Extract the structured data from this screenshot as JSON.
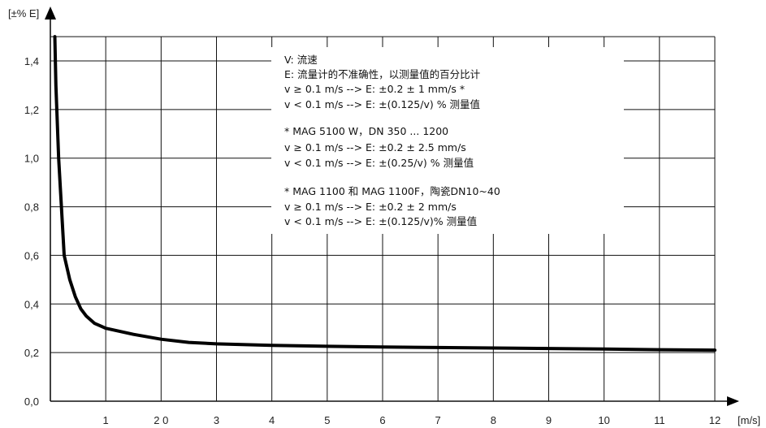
{
  "chart_data": {
    "type": "line",
    "ylabel": "[±% E]",
    "xlabel": "[m/s]",
    "xlim": [
      0,
      12
    ],
    "ylim": [
      0,
      1.5
    ],
    "x_tick_labels": [
      {
        "x": 1,
        "label": "1"
      },
      {
        "x": 2,
        "label": "2 0"
      },
      {
        "x": 3,
        "label": "3"
      },
      {
        "x": 4,
        "label": "4"
      },
      {
        "x": 5,
        "label": "5"
      },
      {
        "x": 6,
        "label": "6"
      },
      {
        "x": 7,
        "label": "7"
      },
      {
        "x": 8,
        "label": "8"
      },
      {
        "x": 9,
        "label": "9"
      },
      {
        "x": 10,
        "label": "10"
      },
      {
        "x": 11,
        "label": "11"
      },
      {
        "x": 12,
        "label": "12"
      }
    ],
    "y_tick_labels": [
      {
        "y": 0.0,
        "label": "0,0"
      },
      {
        "y": 0.2,
        "label": "0,2"
      },
      {
        "y": 0.4,
        "label": "0,4"
      },
      {
        "y": 0.6,
        "label": "0,6"
      },
      {
        "y": 0.8,
        "label": "0,8"
      },
      {
        "y": 1.0,
        "label": "1,0"
      },
      {
        "y": 1.2,
        "label": "1,2"
      },
      {
        "y": 1.4,
        "label": "1,4"
      }
    ],
    "grid": true,
    "series": [
      {
        "x": [
          0.08,
          0.1,
          0.15,
          0.2,
          0.25,
          0.35,
          0.45,
          0.55,
          0.65,
          0.8,
          1.0,
          1.2,
          1.5,
          2.0,
          2.5,
          3.0,
          4.0,
          5.0,
          6.0,
          7.0,
          8.0,
          9.0,
          10.0,
          11.0,
          12.0
        ],
        "values": [
          1.5,
          1.3,
          1.0,
          0.8,
          0.6,
          0.5,
          0.43,
          0.38,
          0.35,
          0.32,
          0.3,
          0.29,
          0.275,
          0.255,
          0.242,
          0.236,
          0.23,
          0.226,
          0.223,
          0.221,
          0.219,
          0.217,
          0.215,
          0.212,
          0.21
        ]
      }
    ],
    "annotations": [
      "V:  流速",
      "E:  流量计的不准确性，以测量值的百分比计",
      "v ≥  0.1 m/s  --> E:  ±0.2 ± 1 mm/s *",
      "v <  0.1 m/s  --> E:  ±(0.125/v) % 测量值",
      "* MAG 5100 W，DN 350 ... 1200",
      "v ≥  0.1 m/s  --> E:  ±0.2 ± 2.5 mm/s",
      "v <  0.1 m/s  --> E:  ±(0.25/v) % 测量值",
      "* MAG 1100 和 MAG 1100F，陶瓷DN10~40",
      "v ≥ 0.1 m/s  --> E: ±0.2 ± 2 mm/s",
      "v < 0.1 m/s  --> E: ±(0.125/v)% 测量值"
    ]
  }
}
